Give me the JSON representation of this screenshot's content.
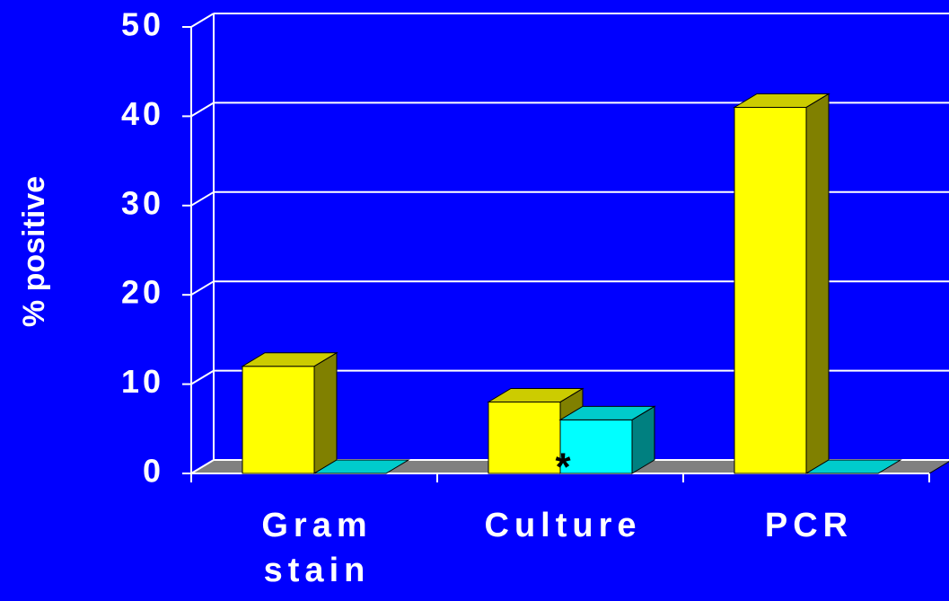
{
  "chart_data": {
    "type": "bar3d",
    "ylabel": "% positive",
    "categories": [
      "Gram stain",
      "Culture",
      "PCR"
    ],
    "series": [
      {
        "color": "#ffff00",
        "values": [
          12,
          8,
          41
        ]
      },
      {
        "color": "#00ffff",
        "values": [
          0,
          6,
          0
        ]
      }
    ],
    "ylim": [
      0,
      50
    ],
    "yticks": [
      0,
      10,
      20,
      30,
      40,
      50
    ],
    "grid": true,
    "annotations": [
      {
        "text": "*",
        "category": 1,
        "series": 1
      }
    ]
  }
}
